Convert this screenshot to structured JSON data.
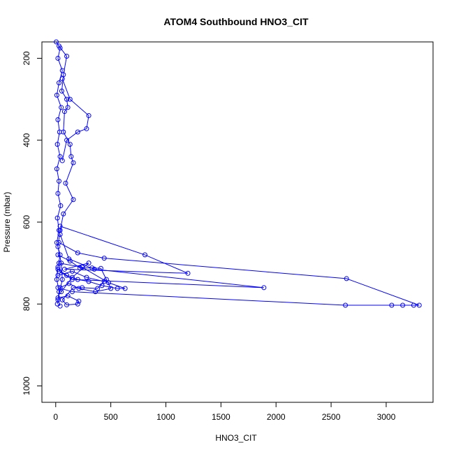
{
  "chart_data": {
    "type": "line",
    "title": "ATOM4 Southbound HNO3_CIT",
    "xlabel": "HNO3_CIT",
    "ylabel": "Pressure (mbar)",
    "xlim": [
      0,
      3300
    ],
    "ylim": [
      1040,
      160
    ],
    "y_reversed": true,
    "x_ticks": [
      0,
      500,
      1000,
      1500,
      2000,
      2500,
      3000
    ],
    "y_ticks": [
      200,
      400,
      600,
      800,
      1000
    ],
    "grid": false,
    "legend": "none",
    "marker": "open-circle",
    "color": "#0000ff",
    "series": [
      {
        "values": [
          [
            5,
            160
          ],
          [
            40,
            175
          ],
          [
            20,
            200
          ],
          [
            60,
            230
          ],
          [
            30,
            260
          ],
          [
            10,
            290
          ],
          [
            50,
            320
          ],
          [
            20,
            350
          ],
          [
            35,
            380
          ],
          [
            15,
            410
          ],
          [
            40,
            440
          ],
          [
            10,
            470
          ],
          [
            30,
            500
          ],
          [
            20,
            530
          ],
          [
            45,
            560
          ],
          [
            15,
            590
          ],
          [
            30,
            620
          ],
          [
            10,
            650
          ],
          [
            40,
            680
          ],
          [
            20,
            710
          ],
          [
            10,
            740
          ],
          [
            30,
            770
          ],
          [
            15,
            800
          ]
        ]
      },
      {
        "values": [
          [
            30,
            170
          ],
          [
            100,
            195
          ],
          [
            70,
            240
          ],
          [
            55,
            280
          ],
          [
            100,
            300
          ],
          [
            110,
            320
          ],
          [
            80,
            330
          ],
          [
            70,
            380
          ],
          [
            130,
            410
          ],
          [
            140,
            440
          ],
          [
            160,
            455
          ],
          [
            90,
            505
          ],
          [
            160,
            545
          ],
          [
            70,
            580
          ],
          [
            40,
            620
          ],
          [
            20,
            660
          ],
          [
            50,
            700
          ],
          [
            60,
            740
          ],
          [
            20,
            790
          ],
          [
            40,
            805
          ]
        ]
      },
      {
        "values": [
          [
            60,
            250
          ],
          [
            130,
            300
          ],
          [
            300,
            340
          ],
          [
            280,
            372
          ],
          [
            200,
            380
          ],
          [
            100,
            400
          ],
          [
            60,
            450
          ]
        ]
      },
      {
        "values": [
          [
            40,
            610
          ],
          [
            810,
            680
          ],
          [
            1200,
            725
          ],
          [
            80,
            715
          ],
          [
            300,
            700
          ],
          [
            150,
            735
          ],
          [
            50,
            770
          ]
        ]
      },
      {
        "values": [
          [
            30,
            650
          ],
          [
            200,
            675
          ],
          [
            440,
            688
          ],
          [
            2640,
            738
          ],
          [
            3300,
            803
          ],
          [
            3250,
            803
          ],
          [
            3150,
            803
          ],
          [
            3050,
            803
          ],
          [
            2630,
            803
          ],
          [
            150,
            770
          ],
          [
            20,
            760
          ]
        ]
      },
      {
        "values": [
          [
            40,
            630
          ],
          [
            120,
            690
          ],
          [
            350,
            715
          ],
          [
            1890,
            760
          ],
          [
            150,
            740
          ],
          [
            30,
            720
          ]
        ]
      },
      {
        "values": [
          [
            30,
            700
          ],
          [
            240,
            710
          ],
          [
            480,
            748
          ],
          [
            630,
            762
          ],
          [
            560,
            762
          ],
          [
            420,
            755
          ],
          [
            300,
            745
          ],
          [
            200,
            740
          ],
          [
            100,
            730
          ],
          [
            20,
            715
          ]
        ]
      },
      {
        "values": [
          [
            20,
            730
          ],
          [
            150,
            720
          ],
          [
            280,
            735
          ],
          [
            440,
            745
          ],
          [
            380,
            762
          ],
          [
            240,
            760
          ],
          [
            160,
            760
          ],
          [
            60,
            790
          ],
          [
            100,
            802
          ],
          [
            200,
            800
          ],
          [
            210,
            793
          ],
          [
            110,
            780
          ],
          [
            20,
            785
          ]
        ]
      },
      {
        "values": [
          [
            20,
            680
          ],
          [
            130,
            695
          ],
          [
            220,
            712
          ],
          [
            330,
            712
          ],
          [
            410,
            713
          ],
          [
            460,
            740
          ],
          [
            500,
            762
          ],
          [
            360,
            770
          ],
          [
            210,
            762
          ],
          [
            120,
            750
          ],
          [
            40,
            760
          ]
        ]
      }
    ]
  }
}
